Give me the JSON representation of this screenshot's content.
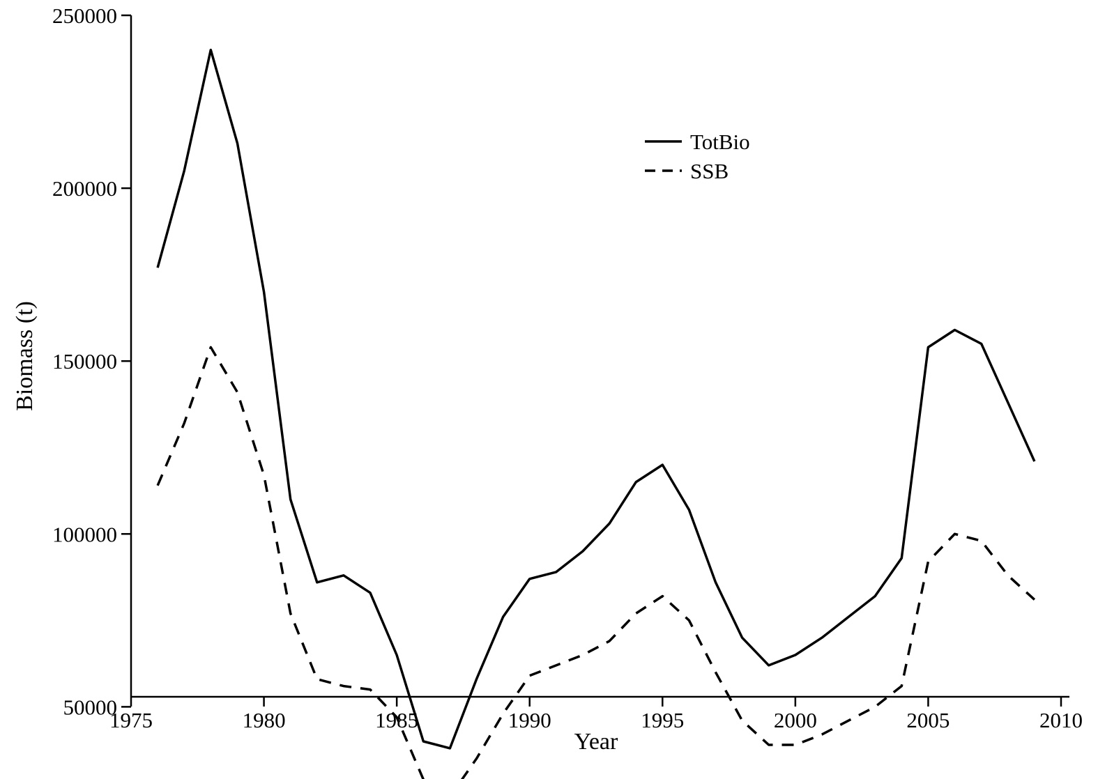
{
  "chart_data": {
    "type": "line",
    "title": "",
    "xlabel": "Year",
    "ylabel": "Biomass (t)",
    "xlim": [
      1975,
      2010
    ],
    "ylim": [
      0,
      250000
    ],
    "xticks": [
      1975,
      1980,
      1985,
      1990,
      1995,
      2000,
      2005,
      2010
    ],
    "yticks": [
      50000,
      100000,
      150000,
      200000,
      250000
    ],
    "grid": false,
    "legend_position": "top-center",
    "x": [
      1976,
      1977,
      1978,
      1979,
      1980,
      1981,
      1982,
      1983,
      1984,
      1985,
      1986,
      1987,
      1988,
      1989,
      1990,
      1991,
      1992,
      1993,
      1994,
      1995,
      1996,
      1997,
      1998,
      1999,
      2000,
      2001,
      2002,
      2003,
      2004,
      2005,
      2006,
      2007,
      2008,
      2009
    ],
    "series": [
      {
        "name": "TotBio",
        "style": "solid",
        "color": "#000000",
        "values": [
          177000,
          205000,
          240000,
          213000,
          170000,
          110000,
          86000,
          88000,
          83000,
          65000,
          40000,
          38000,
          58000,
          76000,
          87000,
          89000,
          95000,
          103000,
          115000,
          120000,
          107000,
          86000,
          70000,
          62000,
          65000,
          70000,
          76000,
          82000,
          93000,
          154000,
          159000,
          155000,
          138000,
          121000
        ]
      },
      {
        "name": "SSB",
        "style": "dashed",
        "color": "#000000",
        "values": [
          114000,
          132000,
          154000,
          141000,
          117000,
          77000,
          58000,
          56000,
          55000,
          47000,
          29000,
          24000,
          35000,
          48000,
          59000,
          62000,
          65000,
          69000,
          77000,
          82000,
          75000,
          60000,
          46000,
          39000,
          39000,
          42000,
          46000,
          50000,
          56000,
          92000,
          100000,
          98000,
          88000,
          81000
        ]
      }
    ]
  }
}
